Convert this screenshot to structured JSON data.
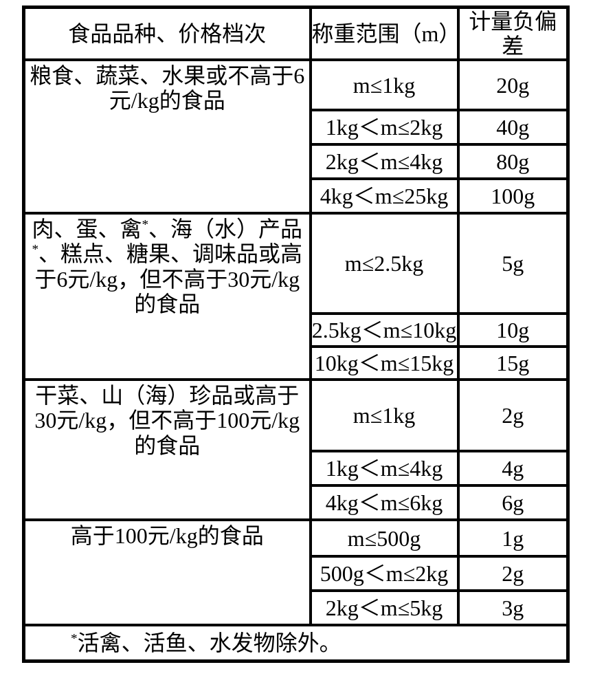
{
  "colors": {
    "border": "#000000",
    "text": "#000000",
    "background": "#ffffff"
  },
  "table": {
    "headers": [
      "食品品种、价格档次",
      "称重范围（m）",
      "计量负偏差"
    ],
    "groups": [
      {
        "category": "粮食、蔬菜、水果或不高于6元/kg的食品",
        "rows": [
          {
            "range": "m≤1kg",
            "deviation": "20g"
          },
          {
            "range": "1kg＜m≤2kg",
            "deviation": "40g"
          },
          {
            "range": "2kg＜m≤4kg",
            "deviation": "80g"
          },
          {
            "range": "4kg＜m≤25kg",
            "deviation": "100g"
          }
        ]
      },
      {
        "category": "肉、蛋、禽*、海（水）产品*、糕点、糖果、调味品或高于6元/kg，但不高于30元/kg的食品",
        "rows": [
          {
            "range": "m≤2.5kg",
            "deviation": "5g"
          },
          {
            "range": "2.5kg＜m≤10kg",
            "deviation": "10g"
          },
          {
            "range": "10kg＜m≤15kg",
            "deviation": "15g"
          }
        ]
      },
      {
        "category": "干菜、山（海）珍品或高于30元/kg，但不高于100元/kg的食品",
        "rows": [
          {
            "range": "m≤1kg",
            "deviation": "2g"
          },
          {
            "range": "1kg＜m≤4kg",
            "deviation": "4g"
          },
          {
            "range": "4kg＜m≤6kg",
            "deviation": "6g"
          }
        ]
      },
      {
        "category": "高于100元/kg的食品",
        "rows": [
          {
            "range": "m≤500g",
            "deviation": "1g"
          },
          {
            "range": "500g＜m≤2kg",
            "deviation": "2g"
          },
          {
            "range": "2kg＜m≤5kg",
            "deviation": "3g"
          }
        ]
      }
    ],
    "footnote": "*活禽、活鱼、水发物除外。"
  }
}
